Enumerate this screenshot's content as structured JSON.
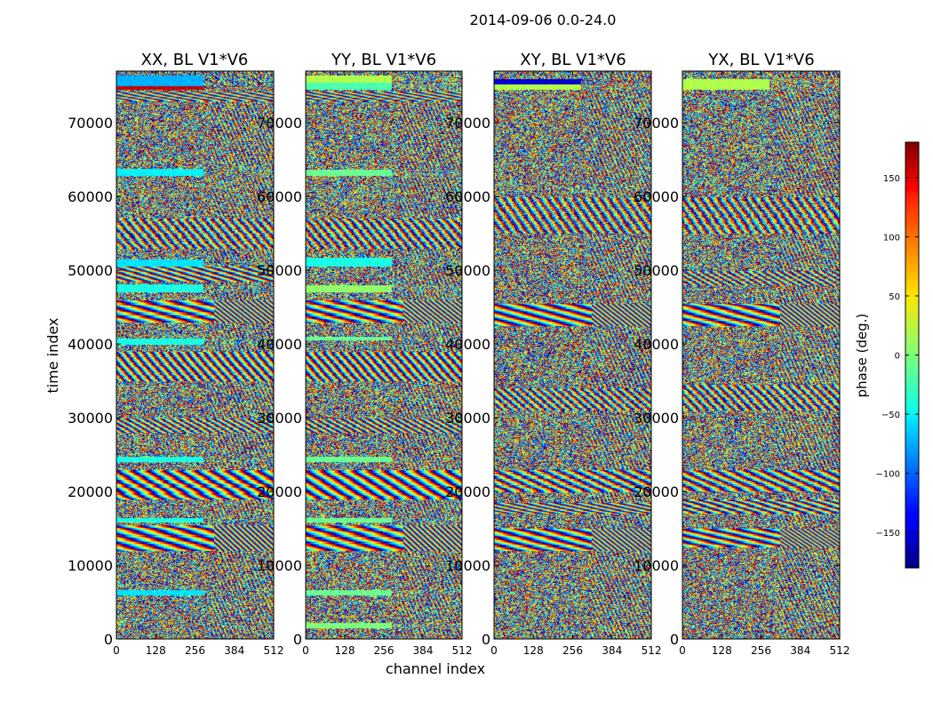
{
  "chart_data": {
    "type": "heatmap",
    "title": "2014-09-06 0.0-24.0",
    "xlabel": "channel index",
    "ylabel": "time index",
    "xlim": [
      0,
      512
    ],
    "ylim": [
      0,
      77000
    ],
    "x_ticks": [
      "0",
      "128",
      "256",
      "384",
      "512"
    ],
    "y_ticks": [
      "0",
      "10000",
      "20000",
      "30000",
      "40000",
      "50000",
      "60000",
      "70000"
    ],
    "x_tick_values": [
      0,
      128,
      256,
      384,
      512
    ],
    "y_tick_values": [
      0,
      10000,
      20000,
      30000,
      40000,
      50000,
      60000,
      70000
    ],
    "panels": [
      {
        "title": "XX, BL V1*V6",
        "pol": "XX"
      },
      {
        "title": "YY, BL V1*V6",
        "pol": "YY"
      },
      {
        "title": "XY, BL V1*V6",
        "pol": "XY"
      },
      {
        "title": "YX, BL V1*V6",
        "pol": "YX"
      }
    ],
    "colorbar": {
      "label": "phase (deg.)",
      "vmin": -180,
      "vmax": 180,
      "ticks": [
        "−150",
        "−100",
        "−50",
        "0",
        "50",
        "100",
        "150"
      ],
      "tick_values": [
        -150,
        -100,
        -50,
        0,
        50,
        100,
        150
      ],
      "colormap": "jet"
    }
  }
}
